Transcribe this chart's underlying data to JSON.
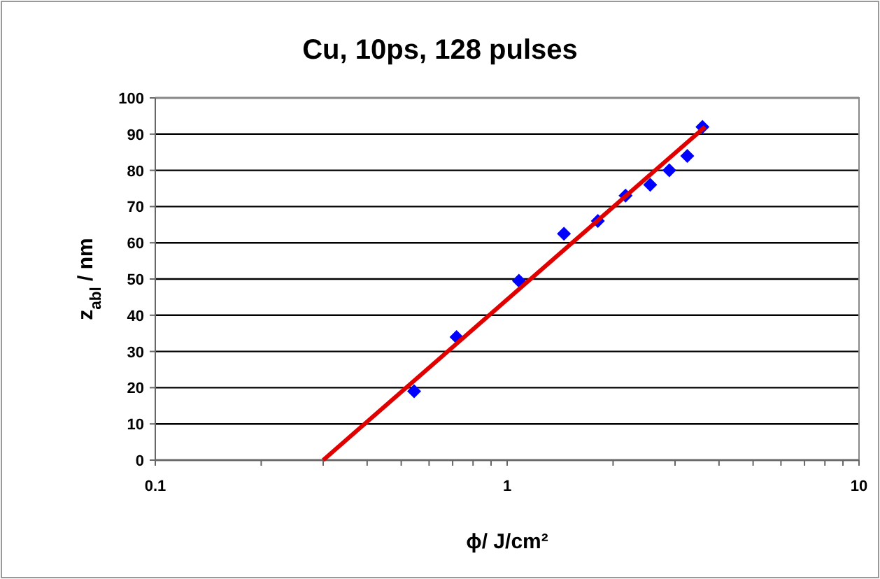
{
  "chart_data": {
    "type": "scatter",
    "title": "Cu, 10ps, 128 pulses",
    "xlabel": "ϕ/ J/cm²",
    "ylabel": "z$_{abl}$ / nm",
    "log": "x",
    "grid": "y",
    "xlim": [
      0.1,
      10
    ],
    "ylim": [
      0,
      100
    ],
    "xticks": [
      0.1,
      {
        "value": 0.2,
        "label": null
      },
      {
        "value": 0.3,
        "label": null
      },
      {
        "value": 0.4,
        "label": null
      },
      {
        "value": 0.5,
        "label": null
      },
      {
        "value": 0.6,
        "label": null
      },
      {
        "value": 0.7,
        "label": null
      },
      {
        "value": 0.8,
        "label": null
      },
      {
        "value": 0.9,
        "label": null
      },
      1,
      {
        "value": 2,
        "label": null
      },
      {
        "value": 3,
        "label": null
      },
      {
        "value": 4,
        "label": null
      },
      {
        "value": 5,
        "label": null
      },
      {
        "value": 6,
        "label": null
      },
      {
        "value": 7,
        "label": null
      },
      {
        "value": 8,
        "label": null
      },
      {
        "value": 9,
        "label": null
      },
      10
    ],
    "yticks": [
      0,
      10,
      20,
      30,
      40,
      50,
      60,
      70,
      80,
      90,
      100
    ],
    "series": [
      {
        "marker": "diamond",
        "color": "#0000ff",
        "x": [
          0.544,
          0.718,
          1.08,
          1.45,
          1.81,
          2.17,
          2.55,
          2.89,
          3.25,
          3.59
        ],
        "values": [
          19,
          34,
          49.5,
          62.5,
          66,
          73,
          76,
          80,
          84,
          92
        ]
      },
      {
        "type": "line",
        "marker": "none",
        "color": "#e00000",
        "x": [
          0.3,
          3.65
        ],
        "values": [
          0,
          92
        ]
      }
    ]
  }
}
